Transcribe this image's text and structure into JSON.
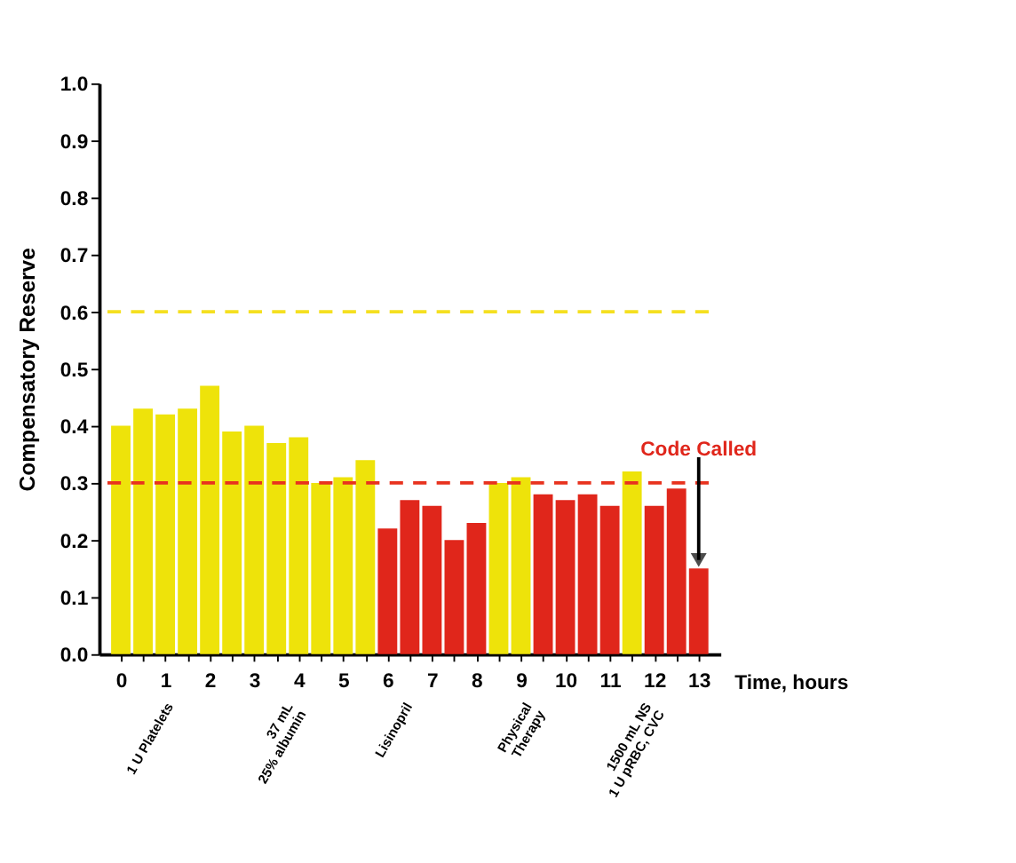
{
  "chart_data": {
    "type": "bar",
    "xlabel": "Time, hours",
    "ylabel": "Compensatory Reserve",
    "x": [
      0,
      0.5,
      1,
      1.5,
      2,
      2.5,
      3,
      3.5,
      4,
      4.5,
      5,
      5.5,
      6,
      6.5,
      7,
      7.5,
      8,
      8.5,
      9,
      9.5,
      10,
      10.5,
      11,
      11.5,
      12,
      12.5,
      13
    ],
    "values": [
      0.4,
      0.43,
      0.42,
      0.43,
      0.47,
      0.39,
      0.4,
      0.37,
      0.38,
      0.3,
      0.31,
      0.34,
      0.22,
      0.27,
      0.26,
      0.2,
      0.23,
      0.3,
      0.31,
      0.28,
      0.27,
      0.28,
      0.26,
      0.32,
      0.26,
      0.29,
      0.15
    ],
    "colors": [
      "#eee30a",
      "#eee30a",
      "#eee30a",
      "#eee30a",
      "#eee30a",
      "#eee30a",
      "#eee30a",
      "#eee30a",
      "#eee30a",
      "#eee30a",
      "#eee30a",
      "#eee30a",
      "#e0261b",
      "#e0261b",
      "#e0261b",
      "#e0261b",
      "#e0261b",
      "#eee30a",
      "#eee30a",
      "#e0261b",
      "#e0261b",
      "#e0261b",
      "#e0261b",
      "#eee30a",
      "#e0261b",
      "#e0261b",
      "#e0261b"
    ],
    "xlim": [
      -0.3,
      13.3
    ],
    "xticks": [
      0,
      {
        "value": 0.5,
        "label": null
      },
      1,
      {
        "value": 1.5,
        "label": null
      },
      2,
      {
        "value": 2.5,
        "label": null
      },
      3,
      {
        "value": 3.5,
        "label": null
      },
      4,
      {
        "value": 4.5,
        "label": null
      },
      5,
      {
        "value": 5.5,
        "label": null
      },
      6,
      {
        "value": 6.5,
        "label": null
      },
      7,
      {
        "value": 7.5,
        "label": null
      },
      8,
      {
        "value": 8.5,
        "label": null
      },
      9,
      {
        "value": 9.5,
        "label": null
      },
      10,
      {
        "value": 10.5,
        "label": null
      },
      11,
      {
        "value": 11.5,
        "label": null
      },
      12,
      {
        "value": 12.5,
        "label": null
      },
      13
    ],
    "ylim": [
      0,
      1.0
    ],
    "yticks": [
      {
        "value": 0,
        "label": "0.0"
      },
      0.1,
      0.2,
      0.3,
      0.4,
      0.5,
      0.6,
      0.7,
      0.8,
      0.9,
      {
        "value": 1,
        "label": "1.0"
      }
    ],
    "grid": false,
    "ref_lines": [
      {
        "axis": "y",
        "value": 0.6,
        "color": "#f5e020",
        "line_style": "dashed"
      },
      {
        "axis": "y",
        "value": 0.3,
        "color": "#e8321e",
        "line_style": "dashed"
      }
    ],
    "annotations": [
      {
        "text": "Code Called",
        "x": 13,
        "y": 0.15
      },
      "1 U Platelets",
      "37 mL\n25% albumin",
      "Lisinopril",
      "Physical\nTherapy",
      "1500 mL NS\n1 U pRBC, CVC"
    ]
  }
}
